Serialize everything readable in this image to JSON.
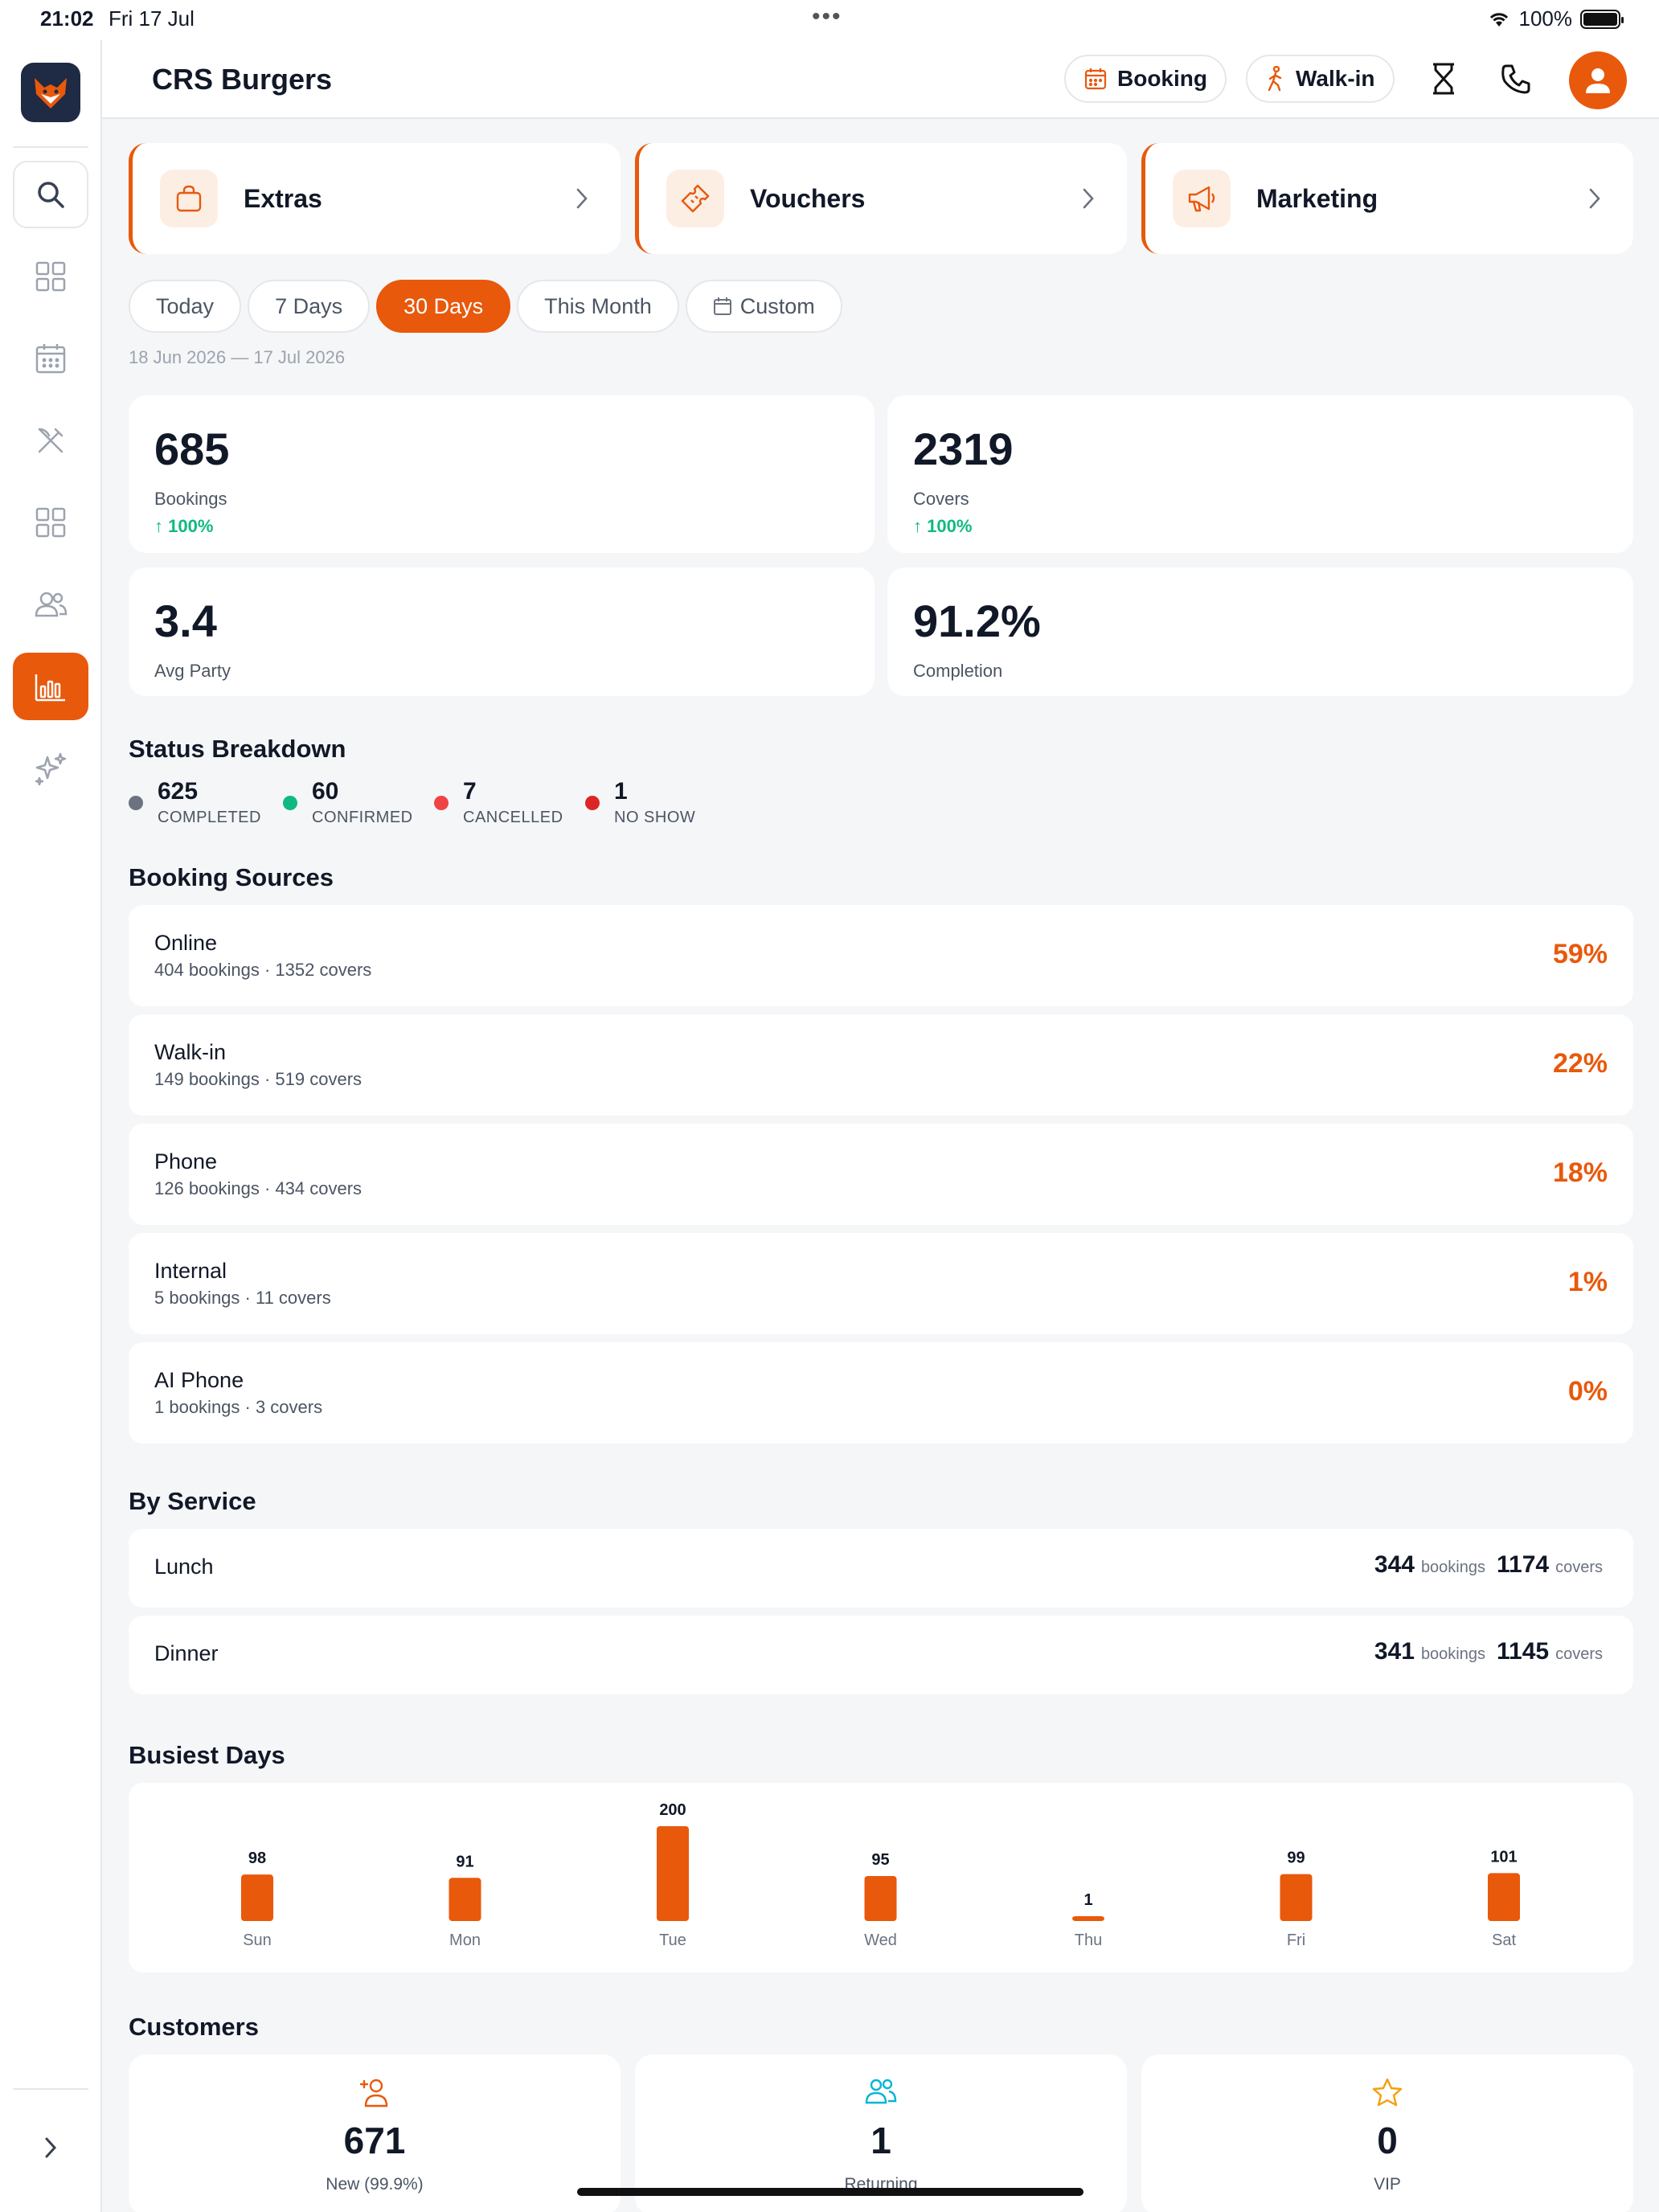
{
  "status_bar": {
    "time": "21:02",
    "date": "Fri 17 Jul",
    "battery": "100%"
  },
  "header": {
    "title": "CRS Burgers",
    "booking_label": "Booking",
    "walkin_label": "Walk-in"
  },
  "quick_links": [
    {
      "label": "Extras",
      "icon": "bag-icon"
    },
    {
      "label": "Vouchers",
      "icon": "ticket-icon"
    },
    {
      "label": "Marketing",
      "icon": "megaphone-icon"
    }
  ],
  "range_pills": {
    "today": "Today",
    "seven": "7 Days",
    "thirty": "30 Days",
    "month": "This Month",
    "custom": "Custom",
    "active": "30 Days"
  },
  "date_range": "18 Jun 2026 — 17 Jul 2026",
  "stats": {
    "bookings": {
      "value": "685",
      "label": "Bookings",
      "trend": "↑ 100%"
    },
    "covers": {
      "value": "2319",
      "label": "Covers",
      "trend": "↑ 100%"
    },
    "avg_party": {
      "value": "3.4",
      "label": "Avg Party"
    },
    "completion": {
      "value": "91.2%",
      "label": "Completion"
    }
  },
  "status_breakdown": {
    "title": "Status Breakdown",
    "items": [
      {
        "count": "625",
        "label": "COMPLETED",
        "color": "#6b7280"
      },
      {
        "count": "60",
        "label": "CONFIRMED",
        "color": "#10b981"
      },
      {
        "count": "7",
        "label": "CANCELLED",
        "color": "#ef4444"
      },
      {
        "count": "1",
        "label": "NO SHOW",
        "color": "#dc2626"
      }
    ]
  },
  "booking_sources": {
    "title": "Booking Sources",
    "items": [
      {
        "name": "Online",
        "sub": "404 bookings · 1352 covers",
        "pct": "59%"
      },
      {
        "name": "Walk-in",
        "sub": "149 bookings · 519 covers",
        "pct": "22%"
      },
      {
        "name": "Phone",
        "sub": "126 bookings · 434 covers",
        "pct": "18%"
      },
      {
        "name": "Internal",
        "sub": "5 bookings · 11 covers",
        "pct": "1%"
      },
      {
        "name": "AI Phone",
        "sub": "1 bookings · 3 covers",
        "pct": "0%"
      }
    ]
  },
  "by_service": {
    "title": "By Service",
    "bookings_unit": "bookings",
    "covers_unit": "covers",
    "items": [
      {
        "name": "Lunch",
        "bookings": "344",
        "covers": "1174"
      },
      {
        "name": "Dinner",
        "bookings": "341",
        "covers": "1145"
      }
    ]
  },
  "busiest_days_title": "Busiest Days",
  "chart_data": {
    "type": "bar",
    "categories": [
      "Sun",
      "Mon",
      "Tue",
      "Wed",
      "Thu",
      "Fri",
      "Sat"
    ],
    "values": [
      98,
      91,
      200,
      95,
      1,
      99,
      101
    ],
    "title": "Busiest Days",
    "color": "#e8590c"
  },
  "customers": {
    "title": "Customers",
    "items": [
      {
        "value": "671",
        "label": "New (99.9%)",
        "icon": "add-user-icon",
        "color": "#e8590c"
      },
      {
        "value": "1",
        "label": "Returning",
        "icon": "users-icon",
        "color": "#06b6d4"
      },
      {
        "value": "0",
        "label": "VIP",
        "icon": "star-icon",
        "color": "#f59e0b"
      }
    ]
  },
  "colors": {
    "accent": "#e8590c",
    "positive": "#10b981"
  }
}
